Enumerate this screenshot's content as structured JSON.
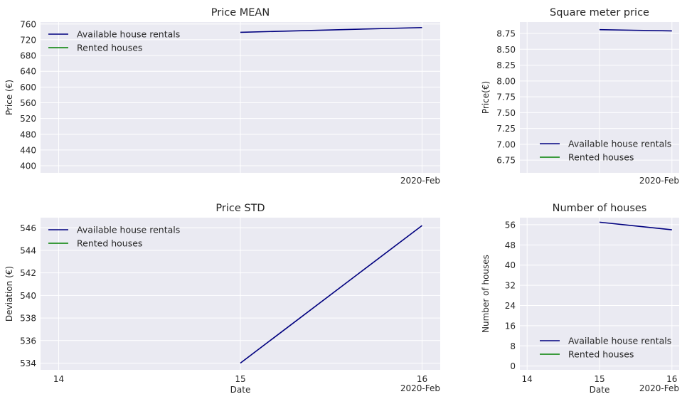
{
  "colors": {
    "background": "#eaeaf2",
    "grid": "#ffffff",
    "available": "#00007f",
    "rented": "#007f00",
    "text": "#262626"
  },
  "date_suffix": "2020-Feb",
  "chart_data": [
    {
      "id": "price-mean",
      "type": "line",
      "title": "Price MEAN",
      "xlabel": "",
      "ylabel": "Price (€)",
      "xlim": [
        13.9,
        16.1
      ],
      "ylim": [
        382,
        765
      ],
      "yticks": [
        400,
        440,
        480,
        520,
        560,
        600,
        640,
        680,
        720,
        760
      ],
      "xticks": [
        14,
        15,
        16
      ],
      "xtick_labels": [
        "",
        "",
        ""
      ],
      "x_offset_label": "2020-Feb",
      "legend": "top-left",
      "grid": true,
      "series": [
        {
          "name": "Available house rentals",
          "color": "#00007f",
          "x": [
            15,
            16
          ],
          "y": [
            739,
            751
          ]
        },
        {
          "name": "Rented houses",
          "color": "#007f00",
          "x": [],
          "y": []
        }
      ]
    },
    {
      "id": "sqm-price",
      "type": "line",
      "title": "Square meter price",
      "xlabel": "",
      "ylabel": "Price(€)",
      "xlim": [
        13.9,
        16.1
      ],
      "ylim": [
        6.55,
        8.93
      ],
      "yticks": [
        6.75,
        7.0,
        7.25,
        7.5,
        7.75,
        8.0,
        8.25,
        8.5,
        8.75
      ],
      "ytick_labels": [
        "6.75",
        "7.00",
        "7.25",
        "7.50",
        "7.75",
        "8.00",
        "8.25",
        "8.50",
        "8.75"
      ],
      "xticks": [
        14,
        15,
        16
      ],
      "xtick_labels": [
        "",
        "",
        ""
      ],
      "x_offset_label": "2020-Feb",
      "legend": "bottom-right",
      "grid": true,
      "series": [
        {
          "name": "Available house rentals",
          "color": "#00007f",
          "x": [
            15,
            16
          ],
          "y": [
            8.81,
            8.79
          ]
        },
        {
          "name": "Rented houses",
          "color": "#007f00",
          "x": [],
          "y": []
        }
      ]
    },
    {
      "id": "price-std",
      "type": "line",
      "title": "Price STD",
      "xlabel": "Date",
      "ylabel": "Deviation (€)",
      "xlim": [
        13.9,
        16.1
      ],
      "ylim": [
        533.4,
        546.9
      ],
      "yticks": [
        534,
        536,
        538,
        540,
        542,
        544,
        546
      ],
      "xticks": [
        14,
        15,
        16
      ],
      "xtick_labels": [
        "14",
        "15",
        "16"
      ],
      "x_offset_label": "2020-Feb",
      "legend": "top-left",
      "grid": true,
      "series": [
        {
          "name": "Available house rentals",
          "color": "#00007f",
          "x": [
            15,
            16
          ],
          "y": [
            534.0,
            546.2
          ]
        },
        {
          "name": "Rented houses",
          "color": "#007f00",
          "x": [],
          "y": []
        }
      ]
    },
    {
      "id": "num-houses",
      "type": "line",
      "title": "Number of houses",
      "xlabel": "Date",
      "ylabel": "Number of houses",
      "xlim": [
        13.9,
        16.1
      ],
      "ylim": [
        -1.5,
        58.8
      ],
      "yticks": [
        0,
        8,
        16,
        24,
        32,
        40,
        48,
        56
      ],
      "xticks": [
        14,
        15,
        16
      ],
      "xtick_labels": [
        "14",
        "15",
        "16"
      ],
      "x_offset_label": "2020-Feb",
      "legend": "bottom-right",
      "grid": true,
      "series": [
        {
          "name": "Available house rentals",
          "color": "#00007f",
          "x": [
            15,
            16
          ],
          "y": [
            57,
            54
          ]
        },
        {
          "name": "Rented houses",
          "color": "#007f00",
          "x": [],
          "y": []
        }
      ]
    }
  ]
}
